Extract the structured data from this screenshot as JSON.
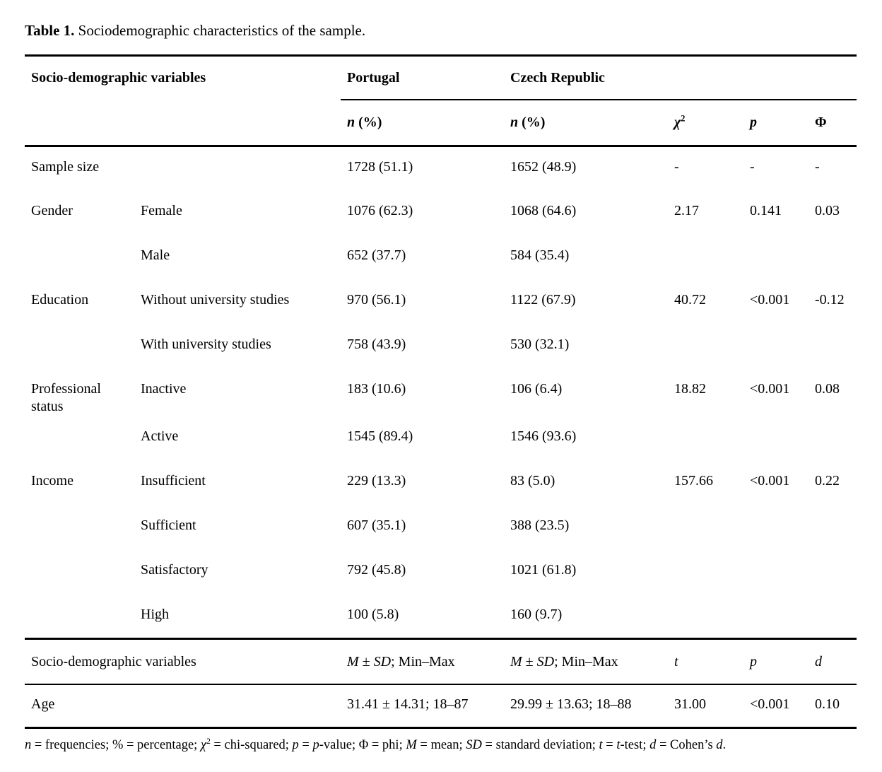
{
  "title": {
    "label": "Table 1.",
    "text": " Sociodemographic characteristics of the sample."
  },
  "table": {
    "header": {
      "variables_label": "Socio-demographic variables",
      "portugal": "Portugal",
      "czech": "Czech Republic",
      "n_pct_portugal": "<i>n</i> (%)",
      "n_pct_czech": "<i>n</i> (%)",
      "chi2": "<i>χ</i><sup>2</sup>",
      "p": "<i>p</i>",
      "phi": "Φ"
    },
    "rows": [
      {
        "category": "Sample size",
        "subcategory": "",
        "portugal": "1728 (51.1)",
        "czech": "1652 (48.9)",
        "chi2": "-",
        "p": "-",
        "phi": "-"
      },
      {
        "category": "Gender",
        "subcategory": "Female",
        "portugal": "1076 (62.3)",
        "czech": "1068 (64.6)",
        "chi2": "2.17",
        "p": "0.141",
        "phi": "0.03"
      },
      {
        "category": "",
        "subcategory": "Male",
        "portugal": "652 (37.7)",
        "czech": "584 (35.4)",
        "chi2": "",
        "p": "",
        "phi": ""
      },
      {
        "category": "Education",
        "subcategory": "Without university studies",
        "portugal": "970 (56.1)",
        "czech": "1122 (67.9)",
        "chi2": "40.72",
        "p": "<0.001",
        "phi": "-0.12"
      },
      {
        "category": "",
        "subcategory": "With university studies",
        "portugal": "758 (43.9)",
        "czech": "530 (32.1)",
        "chi2": "",
        "p": "",
        "phi": ""
      },
      {
        "category": "Professional status",
        "subcategory": "Inactive",
        "portugal": "183 (10.6)",
        "czech": "106 (6.4)",
        "chi2": "18.82",
        "p": "<0.001",
        "phi": "0.08"
      },
      {
        "category": "",
        "subcategory": "Active",
        "portugal": "1545 (89.4)",
        "czech": "1546 (93.6)",
        "chi2": "",
        "p": "",
        "phi": ""
      },
      {
        "category": "Income",
        "subcategory": "Insufficient",
        "portugal": "229 (13.3)",
        "czech": "83 (5.0)",
        "chi2": "157.66",
        "p": "<0.001",
        "phi": "0.22"
      },
      {
        "category": "",
        "subcategory": "Sufficient",
        "portugal": "607 (35.1)",
        "czech": "388 (23.5)",
        "chi2": "",
        "p": "",
        "phi": ""
      },
      {
        "category": "",
        "subcategory": "Satisfactory",
        "portugal": "792 (45.8)",
        "czech": "1021 (61.8)",
        "chi2": "",
        "p": "",
        "phi": ""
      },
      {
        "category": "",
        "subcategory": "High",
        "portugal": "100 (5.8)",
        "czech": "160 (9.7)",
        "chi2": "",
        "p": "",
        "phi": ""
      }
    ],
    "band2": {
      "variables_label": "Socio-demographic variables",
      "m_sd_portugal": "<i>M</i> ± <i>SD</i>; Min–Max",
      "m_sd_czech": "<i>M</i> ± <i>SD</i>; Min–Max",
      "t": "<i>t</i>",
      "p": "<i>p</i>",
      "d": "<i>d</i>",
      "rows": [
        {
          "category": "Age",
          "portugal": "31.41 ± 14.31; 18–87",
          "czech": "29.99 ± 13.63; 18–88",
          "t": "31.00",
          "p": "<0.001",
          "d": "0.10"
        }
      ]
    },
    "footnote": "<i>n</i> = frequencies; % = percentage; <i>χ</i><sup>2</sup> = chi-squared; <i>p</i> = <i>p</i>-value; Φ = phi; <i>M</i> = mean; <i>SD</i> = standard deviation; <i>t</i> = <i>t</i>-test; <i>d</i> = Cohen’s <i>d</i>."
  }
}
